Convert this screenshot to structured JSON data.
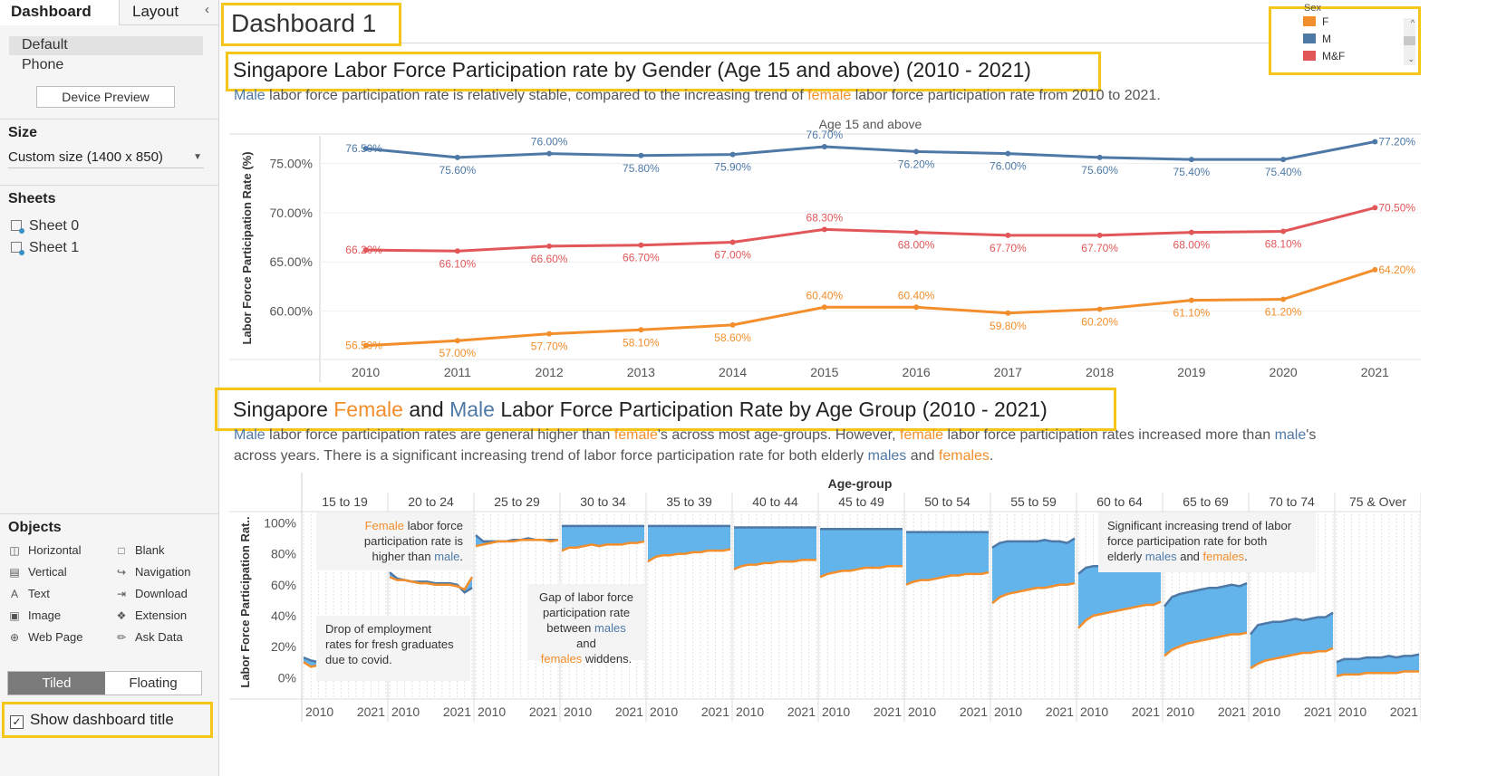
{
  "sidebar": {
    "tabs": [
      "Dashboard",
      "Layout"
    ],
    "devices": [
      "Default",
      "Phone"
    ],
    "device_preview": "Device Preview",
    "size_heading": "Size",
    "size_value": "Custom size (1400 x 850)",
    "sheets_heading": "Sheets",
    "sheets": [
      "Sheet 0",
      "Sheet 1"
    ],
    "objects_heading": "Objects",
    "objects": [
      {
        "label": "Horizontal",
        "icon": "horizontal-icon"
      },
      {
        "label": "Blank",
        "icon": "blank-icon"
      },
      {
        "label": "Vertical",
        "icon": "vertical-icon"
      },
      {
        "label": "Navigation",
        "icon": "navigation-icon"
      },
      {
        "label": "Text",
        "icon": "text-icon"
      },
      {
        "label": "Download",
        "icon": "download-icon"
      },
      {
        "label": "Image",
        "icon": "image-icon"
      },
      {
        "label": "Extension",
        "icon": "extension-icon"
      },
      {
        "label": "Web Page",
        "icon": "globe-icon"
      },
      {
        "label": "Ask Data",
        "icon": "ask-data-icon"
      }
    ],
    "tiled": "Tiled",
    "floating": "Floating",
    "show_title": "Show dashboard title",
    "show_title_checked": true
  },
  "dashboard_title": "Dashboard 1",
  "colors": {
    "female": "#f28e2b",
    "male": "#4e79a7",
    "mf": "#e15759",
    "highlight": "#f5c518",
    "area": "#5bb0ea"
  },
  "legend": {
    "title": "Sex",
    "items": [
      {
        "label": "F",
        "color": "#f28e2b"
      },
      {
        "label": "M",
        "color": "#4e79a7"
      },
      {
        "label": "M&F",
        "color": "#e15759"
      }
    ]
  },
  "top": {
    "title": "Singapore Labor Force Participation rate by Gender (Age 15 and above) (2010 - 2021)",
    "subtitle_parts": [
      "Male",
      " labor force participation rate is relatively stable, compared to the increasing trend of ",
      "female",
      " labor force participation rate from 2010 to 2021."
    ]
  },
  "bottom": {
    "title_parts": [
      "Singapore ",
      "Female",
      "  and ",
      "Male",
      " Labor Force Participation Rate by Age Group (2010 - 2021)"
    ],
    "subtitle_line1": [
      "Male",
      " labor force participation rates are general higher than ",
      "female",
      "'s across most age-groups. However, ",
      "female",
      " labor force participation rates increased more than ",
      "male",
      "'s"
    ],
    "subtitle_line2": [
      "across years. There is a significant increasing trend of labor force participation rate for both elderly ",
      "males",
      " and ",
      "females",
      "."
    ]
  },
  "annotations": {
    "a1": [
      "Female",
      " labor force",
      "participation rate is",
      "higher than ",
      "male",
      "."
    ],
    "a2": [
      "Drop of employment",
      "rates for fresh graduates",
      "due to covid."
    ],
    "a3": [
      "Gap of labor force",
      "participation rate",
      "between ",
      "males",
      " and",
      "females",
      "  widdens."
    ],
    "a4": [
      "Significant increasing trend of labor",
      "force participation rate for both",
      "elderly ",
      "males",
      " and ",
      "females",
      "."
    ]
  },
  "chart_data": [
    {
      "type": "line",
      "title": "Age 15 and above",
      "ylabel": "Labor Force Participation Rate (%)",
      "xlabel": "",
      "x": [
        2010,
        2011,
        2012,
        2013,
        2014,
        2015,
        2016,
        2017,
        2018,
        2019,
        2020,
        2021
      ],
      "ylim": [
        55,
        77.8
      ],
      "yticks": [
        60,
        65,
        70,
        75
      ],
      "ytick_labels": [
        "60.00%",
        "65.00%",
        "70.00%",
        "75.00%"
      ],
      "series": [
        {
          "name": "M",
          "color": "#4e79a7",
          "values": [
            76.5,
            75.6,
            76.0,
            75.8,
            75.9,
            76.7,
            76.2,
            76.0,
            75.6,
            75.4,
            75.4,
            77.2
          ],
          "labels": [
            "76.50%",
            "75.60%",
            "76.00%",
            "75.80%",
            "75.90%",
            "76.70%",
            "76.20%",
            "76.00%",
            "75.60%",
            "75.40%",
            "75.40%",
            "77.20%"
          ]
        },
        {
          "name": "M&F",
          "color": "#e15759",
          "values": [
            66.2,
            66.1,
            66.6,
            66.7,
            67.0,
            68.3,
            68.0,
            67.7,
            67.7,
            68.0,
            68.1,
            70.5
          ],
          "labels": [
            "66.20%",
            "66.10%",
            "66.60%",
            "66.70%",
            "67.00%",
            "68.30%",
            "68.00%",
            "67.70%",
            "67.70%",
            "68.00%",
            "68.10%",
            "70.50%"
          ]
        },
        {
          "name": "F",
          "color": "#f28e2b",
          "values": [
            56.5,
            57.0,
            57.7,
            58.1,
            58.6,
            60.4,
            60.4,
            59.8,
            60.2,
            61.1,
            61.2,
            64.2
          ],
          "labels": [
            "56.50%",
            "57.00%",
            "57.70%",
            "58.10%",
            "58.60%",
            "60.40%",
            "60.40%",
            "59.80%",
            "60.20%",
            "61.10%",
            "61.20%",
            "64.20%"
          ]
        }
      ]
    },
    {
      "type": "area",
      "title": "Age-group",
      "ylabel": "Labor Force Participation Rat..",
      "ylim": [
        -8,
        102
      ],
      "yticks": [
        0,
        20,
        40,
        60,
        80,
        100
      ],
      "ytick_labels": [
        "0%",
        "20%",
        "40%",
        "60%",
        "80%",
        "100%"
      ],
      "x_labels": [
        "2010",
        "2021"
      ],
      "categories": [
        "15 to 19",
        "20 to 24",
        "25 to 29",
        "30 to 34",
        "35 to 39",
        "40 to 44",
        "45 to 49",
        "50 to 54",
        "55 to 59",
        "60 to 64",
        "65 to 69",
        "70 to 74",
        "75 & Over"
      ],
      "series": [
        {
          "name": "M",
          "values": [
            [
              13,
              11,
              10,
              9,
              9,
              8,
              8,
              9,
              9,
              8,
              8,
              9
            ],
            [
              68,
              64,
              63,
              62,
              62,
              62,
              61,
              61,
              61,
              60,
              55,
              58
            ],
            [
              92,
              88,
              88,
              88,
              88,
              89,
              89,
              90,
              89,
              89,
              89,
              89
            ],
            [
              98,
              98,
              98,
              98,
              98,
              98,
              98,
              98,
              98,
              98,
              98,
              98
            ],
            [
              98,
              98,
              98,
              98,
              98,
              98,
              98,
              98,
              98,
              98,
              98,
              98
            ],
            [
              97,
              97,
              97,
              97,
              97,
              97,
              97,
              97,
              97,
              97,
              97,
              97
            ],
            [
              96,
              96,
              96,
              96,
              96,
              96,
              96,
              96,
              96,
              96,
              96,
              96
            ],
            [
              94,
              94,
              94,
              94,
              94,
              94,
              94,
              94,
              94,
              94,
              94,
              94
            ],
            [
              84,
              87,
              88,
              88,
              88,
              88,
              88,
              89,
              88,
              88,
              87,
              90
            ],
            [
              67,
              71,
              72,
              72,
              72,
              73,
              72,
              72,
              72,
              72,
              72,
              73
            ],
            [
              46,
              52,
              54,
              55,
              56,
              57,
              58,
              58,
              59,
              60,
              59,
              61
            ],
            [
              28,
              34,
              35,
              36,
              36,
              37,
              38,
              37,
              38,
              39,
              39,
              42
            ],
            [
              10,
              12,
              12,
              12,
              13,
              13,
              13,
              14,
              13,
              14,
              14,
              15
            ]
          ]
        },
        {
          "name": "F",
          "values": [
            [
              10,
              7,
              8,
              7,
              8,
              7,
              7,
              8,
              8,
              7,
              7,
              9
            ],
            [
              65,
              63,
              63,
              62,
              61,
              61,
              60,
              60,
              60,
              59,
              57,
              65
            ],
            [
              85,
              86,
              87,
              88,
              88,
              88,
              89,
              89,
              89,
              89,
              88,
              89
            ],
            [
              82,
              84,
              84,
              85,
              86,
              85,
              86,
              86,
              86,
              87,
              87,
              88
            ],
            [
              75,
              78,
              79,
              79,
              80,
              80,
              81,
              81,
              82,
              82,
              82,
              83
            ],
            [
              70,
              72,
              73,
              73,
              74,
              74,
              75,
              75,
              75,
              76,
              76,
              76
            ],
            [
              65,
              67,
              68,
              69,
              69,
              70,
              71,
              71,
              71,
              72,
              72,
              72
            ],
            [
              60,
              62,
              63,
              63,
              64,
              65,
              66,
              66,
              67,
              67,
              67,
              68
            ],
            [
              48,
              52,
              54,
              55,
              56,
              57,
              58,
              58,
              59,
              60,
              60,
              61
            ],
            [
              32,
              37,
              40,
              41,
              42,
              43,
              44,
              45,
              46,
              47,
              47,
              49
            ],
            [
              14,
              18,
              20,
              22,
              23,
              24,
              25,
              26,
              27,
              28,
              28,
              29
            ],
            [
              6,
              9,
              11,
              12,
              13,
              14,
              15,
              16,
              16,
              17,
              17,
              19
            ],
            [
              1,
              2,
              2,
              2,
              3,
              3,
              3,
              3,
              3,
              4,
              4,
              4
            ]
          ]
        }
      ]
    }
  ]
}
